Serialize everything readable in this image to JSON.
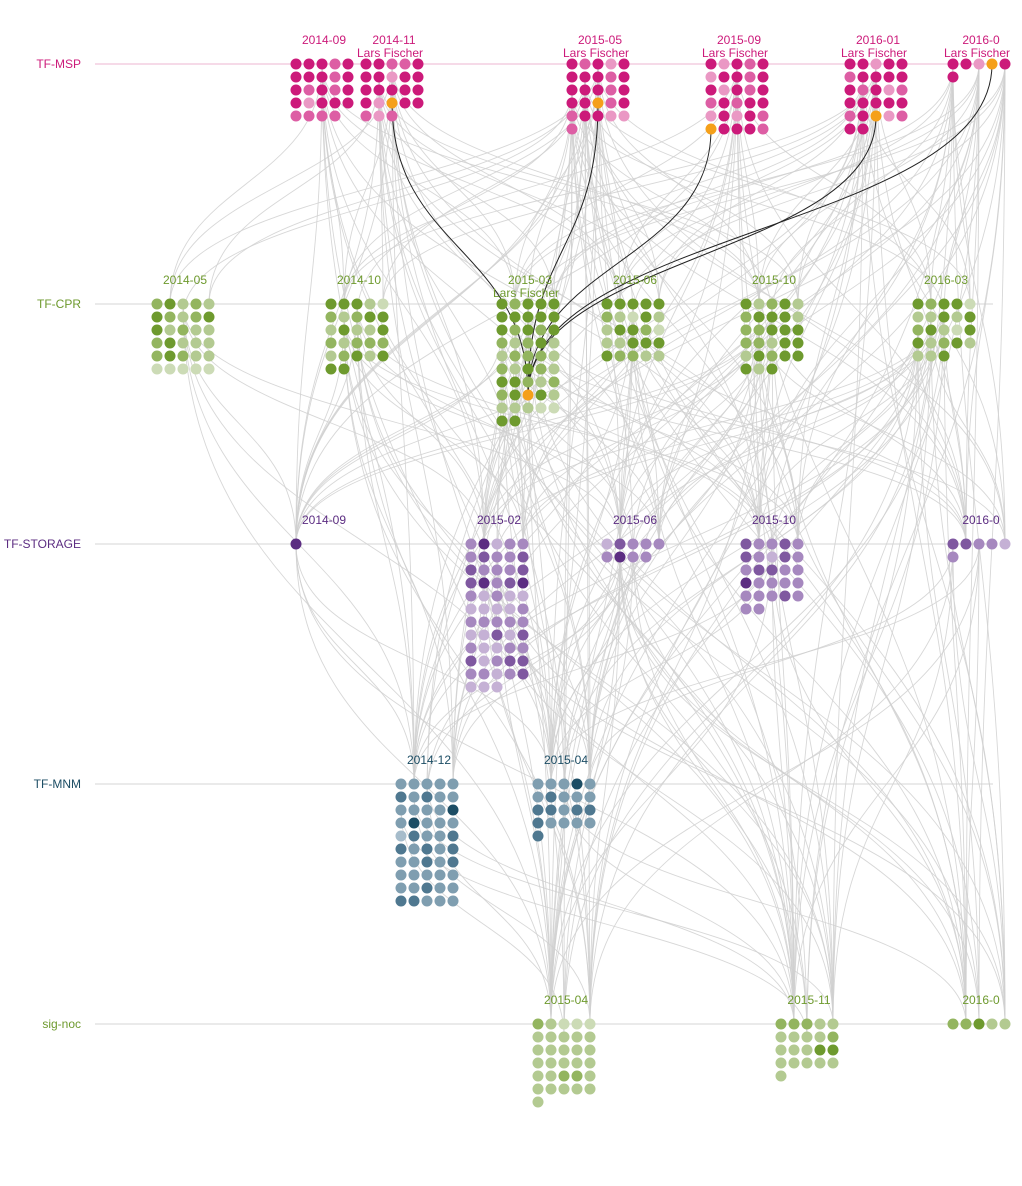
{
  "chart_data": {
    "type": "scatter",
    "title": "",
    "highlight_person": "Lars Fischer",
    "colors": {
      "highlight": "#f5a01a",
      "link": "#d0d0d0",
      "highlight_link": "#222222"
    },
    "rows": [
      {
        "name": "TF-MSP",
        "color": "#cc1a7a",
        "palette": [
          "#cc1a7a",
          "#dd5ea4",
          "#ea98c4",
          "#f3c4dc"
        ],
        "meetings": [
          {
            "date": "2014-09",
            "dots": [
              0,
              0,
              0,
              1,
              0,
              0,
              0,
              0,
              1,
              0,
              0,
              1,
              0,
              1,
              0,
              0,
              2,
              0,
              0,
              0,
              1,
              1,
              1,
              1
            ]
          },
          {
            "date": "2014-11",
            "person": "Lars Fischer",
            "dots": [
              0,
              0,
              1,
              1,
              0,
              0,
              0,
              2,
              0,
              0,
              0,
              0,
              0,
              0,
              0,
              0,
              2,
              9,
              0,
              0,
              1,
              2,
              1
            ]
          },
          {
            "date": "2015-05",
            "person": "Lars Fischer",
            "dots": [
              0,
              1,
              0,
              2,
              0,
              0,
              0,
              0,
              1,
              0,
              0,
              0,
              0,
              1,
              0,
              0,
              0,
              9,
              1,
              0,
              1,
              0,
              0,
              2,
              2,
              1
            ]
          },
          {
            "date": "2015-09",
            "person": "Lars Fischer",
            "dots": [
              0,
              2,
              0,
              1,
              0,
              2,
              0,
              0,
              1,
              0,
              0,
              2,
              0,
              1,
              0,
              1,
              0,
              1,
              0,
              0,
              2,
              0,
              2,
              0,
              1,
              9,
              0,
              0,
              0,
              1
            ]
          },
          {
            "date": "2016-01",
            "person": "Lars Fischer",
            "dots": [
              0,
              0,
              2,
              0,
              0,
              1,
              0,
              0,
              0,
              0,
              0,
              1,
              0,
              2,
              1,
              0,
              0,
              0,
              0,
              0,
              1,
              0,
              9,
              2,
              1,
              0,
              0
            ]
          },
          {
            "date": "2016-0",
            "person": "Lars Fischer",
            "dots": [
              0,
              0,
              2,
              9,
              0,
              0
            ]
          }
        ]
      },
      {
        "name": "TF-CPR",
        "color": "#6e9a2e",
        "palette": [
          "#6e9a2e",
          "#93b55f",
          "#b3ca91",
          "#ccdbb6"
        ],
        "meetings": [
          {
            "date": "2014-05",
            "dots": [
              1,
              0,
              2,
              1,
              2,
              0,
              1,
              2,
              1,
              0,
              0,
              2,
              1,
              2,
              2,
              1,
              0,
              2,
              2,
              2,
              1,
              0,
              1,
              2,
              2,
              3,
              3,
              3,
              3,
              3
            ]
          },
          {
            "date": "2014-10",
            "dots": [
              0,
              0,
              0,
              2,
              3,
              1,
              2,
              1,
              0,
              0,
              2,
              0,
              2,
              2,
              0,
              1,
              2,
              1,
              1,
              1,
              2,
              1,
              0,
              2,
              0,
              0,
              0
            ]
          },
          {
            "date": "2015-03",
            "person": "Lars Fischer",
            "dots": [
              0,
              1,
              0,
              0,
              0,
              0,
              0,
              0,
              0,
              0,
              0,
              1,
              0,
              1,
              0,
              1,
              2,
              1,
              0,
              2,
              2,
              1,
              1,
              1,
              2,
              1,
              2,
              0,
              1,
              2,
              0,
              0,
              1,
              2,
              1,
              1,
              0,
              9,
              0,
              2,
              2,
              2,
              2,
              3,
              3,
              0,
              0
            ]
          },
          {
            "date": "2015-06",
            "dots": [
              0,
              0,
              0,
              0,
              0,
              1,
              2,
              3,
              0,
              2,
              2,
              0,
              0,
              1,
              3,
              2,
              2,
              0,
              0,
              0,
              0,
              1,
              1,
              2,
              2
            ]
          },
          {
            "date": "2015-10",
            "dots": [
              0,
              2,
              1,
              0,
              2,
              1,
              0,
              0,
              0,
              2,
              1,
              1,
              0,
              0,
              0,
              1,
              1,
              2,
              0,
              0,
              2,
              0,
              1,
              0,
              0,
              0,
              2,
              0
            ]
          },
          {
            "date": "2016-03",
            "dots": [
              0,
              1,
              0,
              0,
              3,
              2,
              2,
              0,
              2,
              0,
              1,
              0,
              2,
              3,
              0,
              0,
              2,
              1,
              0,
              2,
              2,
              2,
              0
            ]
          }
        ]
      },
      {
        "name": "TF-STORAGE",
        "color": "#5c2d82",
        "palette": [
          "#5c2d82",
          "#7f58a0",
          "#a688bf",
          "#c5b1d5"
        ],
        "meetings": [
          {
            "date": "2014-09",
            "dots": [
              0
            ]
          },
          {
            "date": "2015-02",
            "dots": [
              2,
              0,
              3,
              2,
              2,
              2,
              1,
              2,
              2,
              1,
              1,
              2,
              2,
              2,
              1,
              1,
              0,
              2,
              1,
              0,
              2,
              3,
              2,
              3,
              3,
              3,
              3,
              3,
              3,
              2,
              2,
              2,
              2,
              2,
              2,
              3,
              3,
              1,
              3,
              1,
              2,
              3,
              3,
              2,
              2,
              1,
              3,
              2,
              1,
              1,
              2,
              2,
              3,
              2,
              1,
              3,
              3,
              3
            ]
          },
          {
            "date": "2015-06",
            "dots": [
              3,
              1,
              2,
              2,
              2,
              2,
              0,
              2,
              2
            ]
          },
          {
            "date": "2015-10",
            "dots": [
              1,
              2,
              2,
              1,
              2,
              1,
              2,
              3,
              1,
              2,
              2,
              1,
              1,
              2,
              2,
              0,
              2,
              2,
              2,
              2,
              2,
              2,
              2,
              1,
              2,
              2,
              2
            ]
          },
          {
            "date": "2016-0",
            "dots": [
              1,
              1,
              2,
              2,
              3,
              2
            ]
          }
        ]
      },
      {
        "name": "TF-MNM",
        "color": "#1c4d64",
        "palette": [
          "#1c4d64",
          "#4f7890",
          "#7f9eb0",
          "#a6bccb"
        ],
        "meetings": [
          {
            "date": "2014-12",
            "dots": [
              2,
              2,
              2,
              2,
              2,
              1,
              2,
              1,
              2,
              2,
              2,
              2,
              2,
              2,
              0,
              2,
              0,
              2,
              2,
              2,
              3,
              1,
              2,
              2,
              1,
              1,
              2,
              1,
              2,
              1,
              2,
              2,
              1,
              2,
              1,
              2,
              2,
              2,
              2,
              2,
              2,
              2,
              1,
              2,
              2,
              1,
              1,
              2,
              2,
              2
            ]
          },
          {
            "date": "2015-04",
            "dots": [
              2,
              2,
              2,
              0,
              2,
              2,
              1,
              2,
              2,
              2,
              1,
              1,
              2,
              1,
              1,
              1,
              2,
              2,
              2,
              2,
              1
            ]
          }
        ]
      },
      {
        "name": "sig-noc",
        "color": "#6e9a2e",
        "palette": [
          "#6e9a2e",
          "#93b55f",
          "#b3ca91",
          "#ccdbb6"
        ],
        "meetings": [
          {
            "date": "2015-04",
            "dots": [
              1,
              2,
              3,
              3,
              3,
              2,
              2,
              2,
              2,
              2,
              2,
              2,
              2,
              2,
              2,
              2,
              2,
              2,
              2,
              2,
              2,
              2,
              1,
              1,
              2,
              2,
              2,
              2,
              2,
              2,
              2
            ]
          },
          {
            "date": "2015-11",
            "dots": [
              1,
              1,
              1,
              2,
              2,
              2,
              2,
              2,
              2,
              1,
              2,
              2,
              2,
              0,
              0,
              2,
              2,
              2,
              2,
              2,
              2
            ]
          },
          {
            "date": "2016-0",
            "dots": [
              1,
              1,
              0,
              2,
              2
            ]
          }
        ]
      }
    ]
  }
}
